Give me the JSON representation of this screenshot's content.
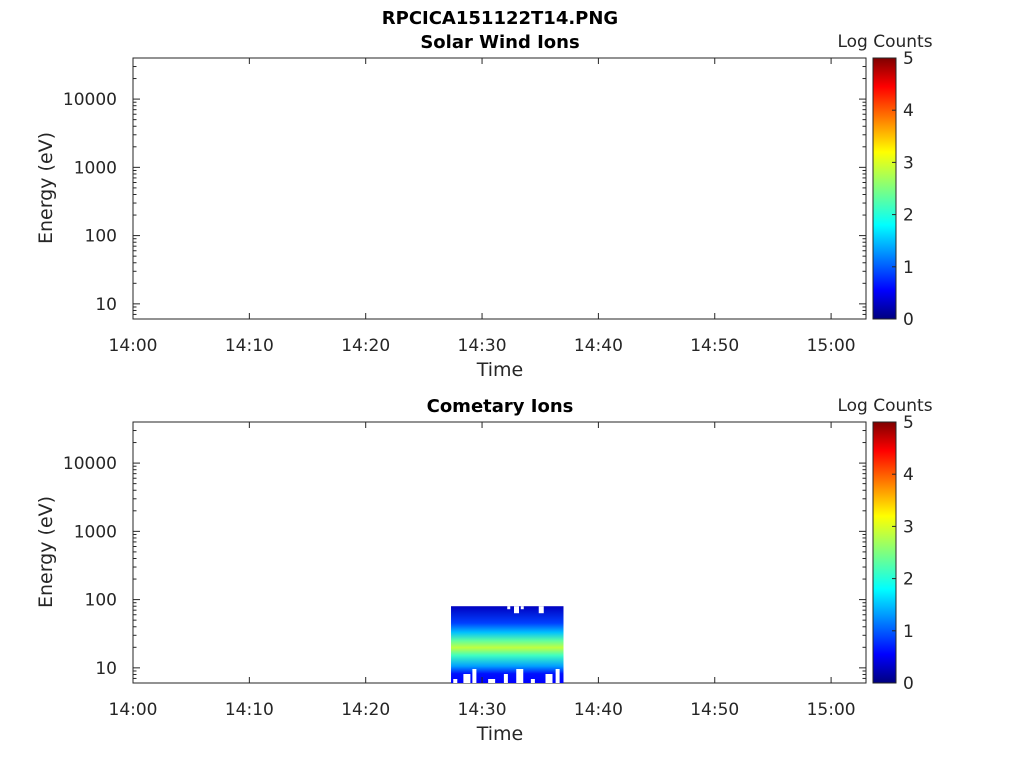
{
  "figure_title": "RPCICA151122T14.PNG",
  "colors": {
    "axis": "#262626",
    "colormap": [
      "#00007f",
      "#0000ff",
      "#007fff",
      "#00ffff",
      "#7fff7f",
      "#ffff00",
      "#ff7f00",
      "#ff0000",
      "#7f0000"
    ]
  },
  "chart_data": [
    {
      "type": "heatmap",
      "title": "Solar Wind Ions",
      "xlabel": "Time",
      "ylabel": "Energy (eV)",
      "x_ticks": [
        "14:00",
        "14:10",
        "14:20",
        "14:30",
        "14:40",
        "14:50",
        "15:00"
      ],
      "xlim": [
        "14:00",
        "15:03"
      ],
      "y_scale": "log",
      "y_ticks": [
        10,
        100,
        1000,
        10000
      ],
      "y_tick_labels": [
        "10",
        "100",
        "1000",
        "10000"
      ],
      "ylim": [
        6,
        40000
      ],
      "colorbar": {
        "label": "Log Counts",
        "range": [
          0,
          5
        ],
        "ticks": [
          "0",
          "1",
          "2",
          "3",
          "4",
          "5"
        ],
        "colormap": "jet"
      },
      "blocks": []
    },
    {
      "type": "heatmap",
      "title": "Cometary Ions",
      "xlabel": "Time",
      "ylabel": "Energy (eV)",
      "x_ticks": [
        "14:00",
        "14:10",
        "14:20",
        "14:30",
        "14:40",
        "14:50",
        "15:00"
      ],
      "xlim": [
        "14:00",
        "15:03"
      ],
      "y_scale": "log",
      "y_ticks": [
        10,
        100,
        1000,
        10000
      ],
      "y_tick_labels": [
        "10",
        "100",
        "1000",
        "10000"
      ],
      "ylim": [
        6,
        40000
      ],
      "colorbar": {
        "label": "Log Counts",
        "range": [
          0,
          5
        ],
        "ticks": [
          "0",
          "1",
          "2",
          "3",
          "4",
          "5"
        ],
        "colormap": "jet"
      },
      "blocks": [
        {
          "t_start": "14:27:20",
          "t_end": "14:37:00",
          "e_min": 6,
          "e_max": 80,
          "peak_energy_ev": 22,
          "peak_log_counts": 2.8
        }
      ]
    }
  ]
}
